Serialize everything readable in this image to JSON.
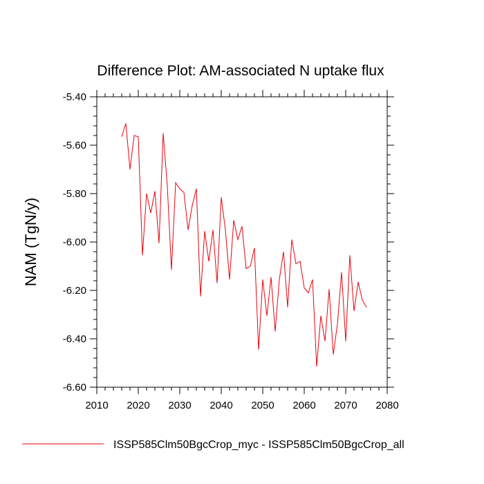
{
  "chart_data": {
    "type": "line",
    "title": "Difference Plot: AM-associated N uptake flux",
    "ylabel": "NAM  (TgN/y)",
    "xlabel": "",
    "xlim": [
      2010,
      2080
    ],
    "ylim": [
      -6.6,
      -5.4
    ],
    "x_ticks": [
      2010,
      2020,
      2030,
      2040,
      2050,
      2060,
      2070,
      2080
    ],
    "y_ticks": [
      -5.4,
      -5.6,
      -5.8,
      -6.0,
      -6.2,
      -6.4,
      -6.6
    ],
    "x_tick_labels": [
      "2010",
      "2020",
      "2030",
      "2040",
      "2050",
      "2060",
      "2070",
      "2080"
    ],
    "y_tick_labels": [
      "-5.40",
      "-5.60",
      "-5.80",
      "-6.00",
      "-6.20",
      "-6.40",
      "-6.60"
    ],
    "grid": false,
    "legend_position": "bottom",
    "series": [
      {
        "name": "ISSP585Clm50BgcCrop_myc - ISSP585Clm50BgcCrop_all",
        "color": "#e8000b",
        "x": [
          2016,
          2017,
          2018,
          2019,
          2020,
          2021,
          2022,
          2023,
          2024,
          2025,
          2026,
          2027,
          2028,
          2029,
          2030,
          2031,
          2032,
          2033,
          2034,
          2035,
          2036,
          2037,
          2038,
          2039,
          2040,
          2041,
          2042,
          2043,
          2044,
          2045,
          2046,
          2047,
          2048,
          2049,
          2050,
          2051,
          2052,
          2053,
          2054,
          2055,
          2056,
          2057,
          2058,
          2059,
          2060,
          2061,
          2062,
          2063,
          2064,
          2065,
          2066,
          2067,
          2068,
          2069,
          2070,
          2071,
          2072,
          2073,
          2074,
          2075
        ],
        "y": [
          -5.565,
          -5.51,
          -5.7,
          -5.56,
          -5.565,
          -6.055,
          -5.8,
          -5.88,
          -5.79,
          -6.005,
          -5.55,
          -5.77,
          -6.115,
          -5.755,
          -5.78,
          -5.795,
          -5.95,
          -5.85,
          -5.78,
          -6.225,
          -5.955,
          -6.08,
          -5.95,
          -6.17,
          -5.815,
          -5.95,
          -6.155,
          -5.91,
          -5.99,
          -5.935,
          -6.11,
          -6.1,
          -6.025,
          -6.445,
          -6.155,
          -6.305,
          -6.145,
          -6.37,
          -6.155,
          -6.04,
          -6.27,
          -5.99,
          -6.09,
          -6.08,
          -6.19,
          -6.21,
          -6.155,
          -6.515,
          -6.305,
          -6.41,
          -6.195,
          -6.465,
          -6.34,
          -6.125,
          -6.41,
          -6.055,
          -6.285,
          -6.165,
          -6.24,
          -6.27
        ]
      }
    ]
  }
}
